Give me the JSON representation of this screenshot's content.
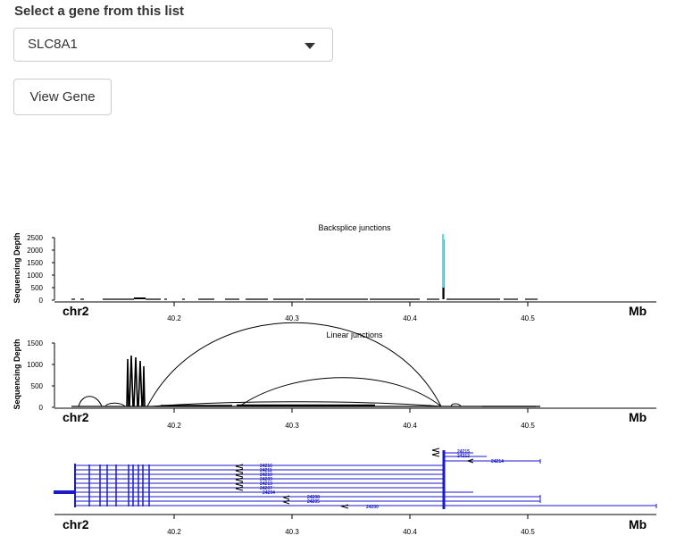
{
  "form": {
    "select_label": "Select a gene from this list",
    "selected_gene": "SLC8A1",
    "view_button": "View Gene"
  },
  "plot": {
    "chromosome": "chr2",
    "unit": "Mb",
    "x_ticks": [
      "40.2",
      "40.3",
      "40.4",
      "40.5"
    ],
    "backsplice": {
      "title": "Backsplice junctions",
      "ylabel": "Sequencing Depth",
      "y_ticks": [
        "0",
        "500",
        "1000",
        "1500",
        "2000",
        "2500"
      ]
    },
    "linear": {
      "title": "Linear junctions",
      "ylabel": "Sequencing Depth",
      "y_ticks": [
        "0",
        "500",
        "1000",
        "1500"
      ]
    },
    "transcripts": {
      "ids": [
        "24216",
        "24211",
        "24210",
        "24209",
        "24213",
        "24207",
        "24204",
        "24208",
        "24205",
        "24200",
        "24215",
        "24212",
        "24214"
      ]
    }
  },
  "colors": {
    "transcript": "#1a1acc",
    "backsplice_peak": "#00d8e0",
    "track_line": "#000000"
  }
}
